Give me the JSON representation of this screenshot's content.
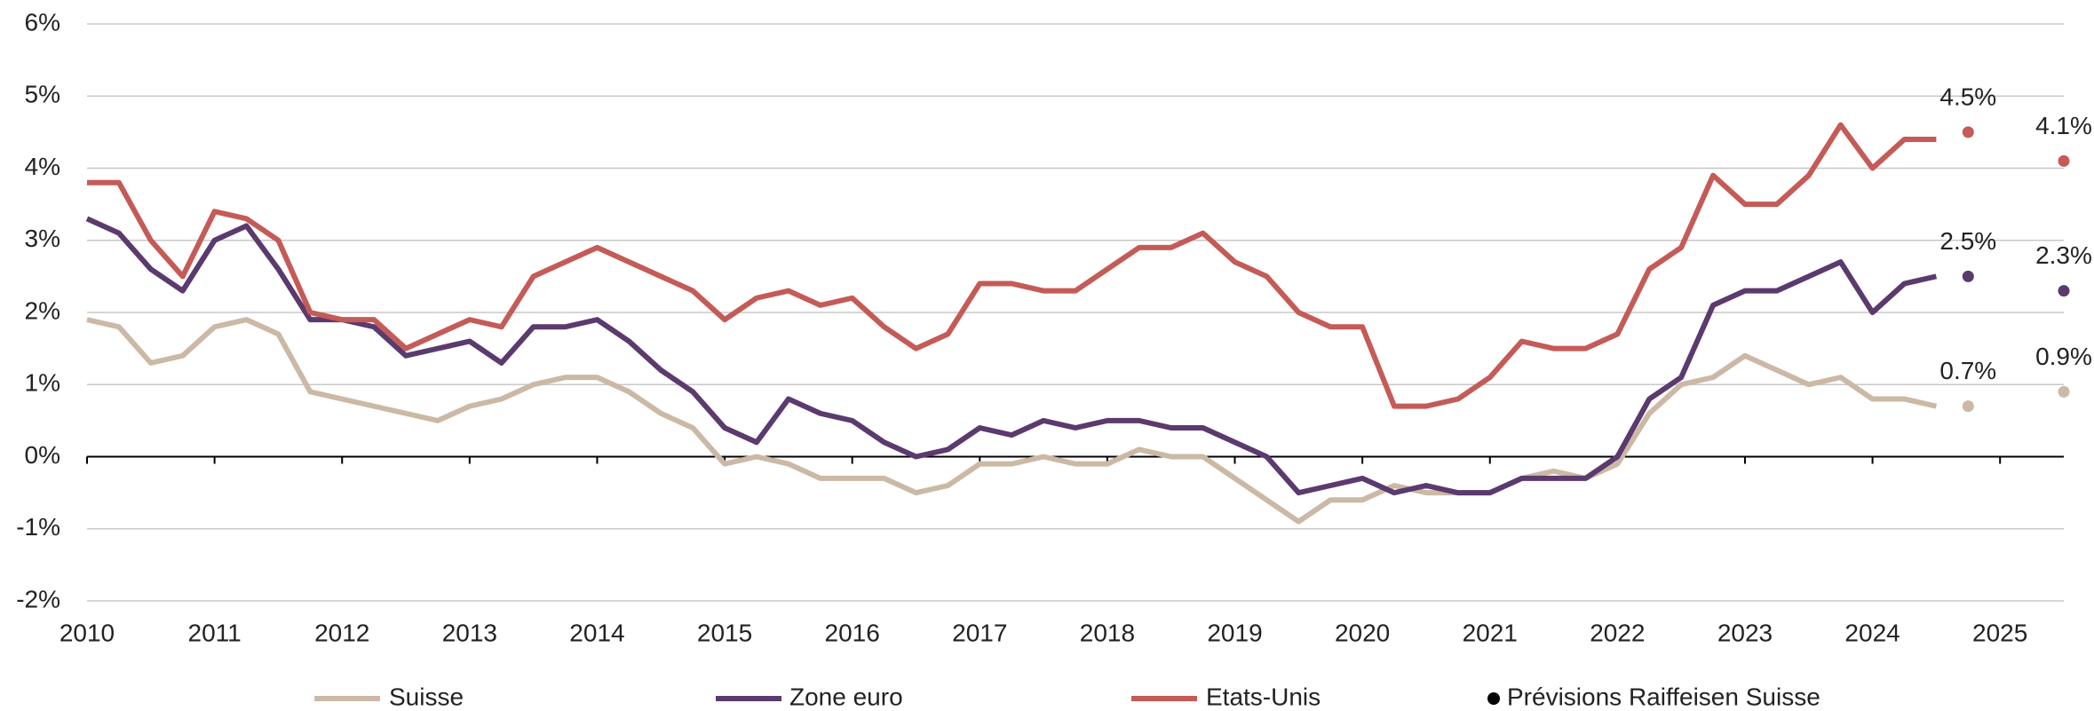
{
  "chart_data": {
    "type": "line",
    "x": [
      2010,
      2010.25,
      2010.5,
      2010.75,
      2011,
      2011.25,
      2011.5,
      2011.75,
      2012,
      2012.25,
      2012.5,
      2012.75,
      2013,
      2013.25,
      2013.5,
      2013.75,
      2014,
      2014.25,
      2014.5,
      2014.75,
      2015,
      2015.25,
      2015.5,
      2015.75,
      2016,
      2016.25,
      2016.5,
      2016.75,
      2017,
      2017.25,
      2017.5,
      2017.75,
      2018,
      2018.25,
      2018.5,
      2018.75,
      2019,
      2019.25,
      2019.5,
      2019.75,
      2020,
      2020.25,
      2020.5,
      2020.75,
      2021,
      2021.25,
      2021.5,
      2021.75,
      2022,
      2022.25,
      2022.5,
      2022.75,
      2023,
      2023.25,
      2023.5,
      2023.75,
      2024,
      2024.25,
      2024.5
    ],
    "series": [
      {
        "name": "Suisse",
        "color": "#cbb9a6",
        "values": [
          1.9,
          1.8,
          1.3,
          1.4,
          1.8,
          1.9,
          1.7,
          0.9,
          0.8,
          0.7,
          0.6,
          0.5,
          0.7,
          0.8,
          1.0,
          1.1,
          1.1,
          0.9,
          0.6,
          0.4,
          -0.1,
          0.0,
          -0.1,
          -0.3,
          -0.3,
          -0.3,
          -0.5,
          -0.4,
          -0.1,
          -0.1,
          0.0,
          -0.1,
          -0.1,
          0.1,
          0.0,
          0.0,
          -0.3,
          -0.6,
          -0.9,
          -0.6,
          -0.6,
          -0.4,
          -0.5,
          -0.5,
          -0.5,
          -0.3,
          -0.2,
          -0.3,
          -0.1,
          0.6,
          1.0,
          1.1,
          1.4,
          1.2,
          1.0,
          1.1,
          0.8,
          0.8,
          0.7
        ]
      },
      {
        "name": "Zone euro",
        "color": "#5b3a6e",
        "values": [
          3.3,
          3.1,
          2.6,
          2.3,
          3.0,
          3.2,
          2.6,
          1.9,
          1.9,
          1.8,
          1.4,
          1.5,
          1.6,
          1.3,
          1.8,
          1.8,
          1.9,
          1.6,
          1.2,
          0.9,
          0.4,
          0.2,
          0.8,
          0.6,
          0.5,
          0.2,
          0.0,
          0.1,
          0.4,
          0.3,
          0.5,
          0.4,
          0.5,
          0.5,
          0.4,
          0.4,
          0.2,
          0.0,
          -0.5,
          -0.4,
          -0.3,
          -0.5,
          -0.4,
          -0.5,
          -0.5,
          -0.3,
          -0.3,
          -0.3,
          0.0,
          0.8,
          1.1,
          2.1,
          2.3,
          2.3,
          2.5,
          2.7,
          2.0,
          2.4,
          2.5
        ]
      },
      {
        "name": "Etats-Unis",
        "color": "#c45b57",
        "values": [
          3.8,
          3.8,
          3.0,
          2.5,
          3.4,
          3.3,
          3.0,
          2.0,
          1.9,
          1.9,
          1.5,
          1.7,
          1.9,
          1.8,
          2.5,
          2.7,
          2.9,
          2.7,
          2.5,
          2.3,
          1.9,
          2.2,
          2.3,
          2.1,
          2.2,
          1.8,
          1.5,
          1.7,
          2.4,
          2.4,
          2.3,
          2.3,
          2.6,
          2.9,
          2.9,
          3.1,
          2.7,
          2.5,
          2.0,
          1.8,
          1.8,
          0.7,
          0.7,
          0.8,
          1.1,
          1.6,
          1.5,
          1.5,
          1.7,
          2.6,
          2.9,
          3.9,
          3.5,
          3.5,
          3.9,
          4.6,
          4.0,
          4.4,
          4.4
        ]
      }
    ],
    "forecast_legend": "Prévisions Raiffeisen Suisse",
    "forecast_color": "#000000",
    "forecasts": [
      {
        "x": [
          2024.75,
          2025.5
        ],
        "values": [
          0.7,
          0.9
        ],
        "value_labels": [
          "0.7%",
          "0.9%"
        ]
      },
      {
        "x": [
          2024.75,
          2025.5
        ],
        "values": [
          2.5,
          2.3
        ],
        "value_labels": [
          "2.5%",
          "2.3%"
        ]
      },
      {
        "x": [
          2024.75,
          2025.5
        ],
        "values": [
          4.5,
          4.1
        ],
        "value_labels": [
          "4.5%",
          "4.1%"
        ]
      }
    ],
    "xlim": [
      2010,
      2025.5
    ],
    "xticks": [
      2010,
      2011,
      2012,
      2013,
      2014,
      2015,
      2016,
      2017,
      2018,
      2019,
      2020,
      2021,
      2022,
      2023,
      2024,
      2025
    ],
    "ylim": [
      -2,
      6
    ],
    "yticks": [
      {
        "value": -2,
        "label": "-2%"
      },
      {
        "value": -1,
        "label": "-1%"
      },
      {
        "value": 0,
        "label": "0%"
      },
      {
        "value": 1,
        "label": "1%"
      },
      {
        "value": 2,
        "label": "2%"
      },
      {
        "value": 3,
        "label": "3%"
      },
      {
        "value": 4,
        "label": "4%"
      },
      {
        "value": 5,
        "label": "5%"
      },
      {
        "value": 6,
        "label": "6%"
      }
    ],
    "grid": true
  }
}
